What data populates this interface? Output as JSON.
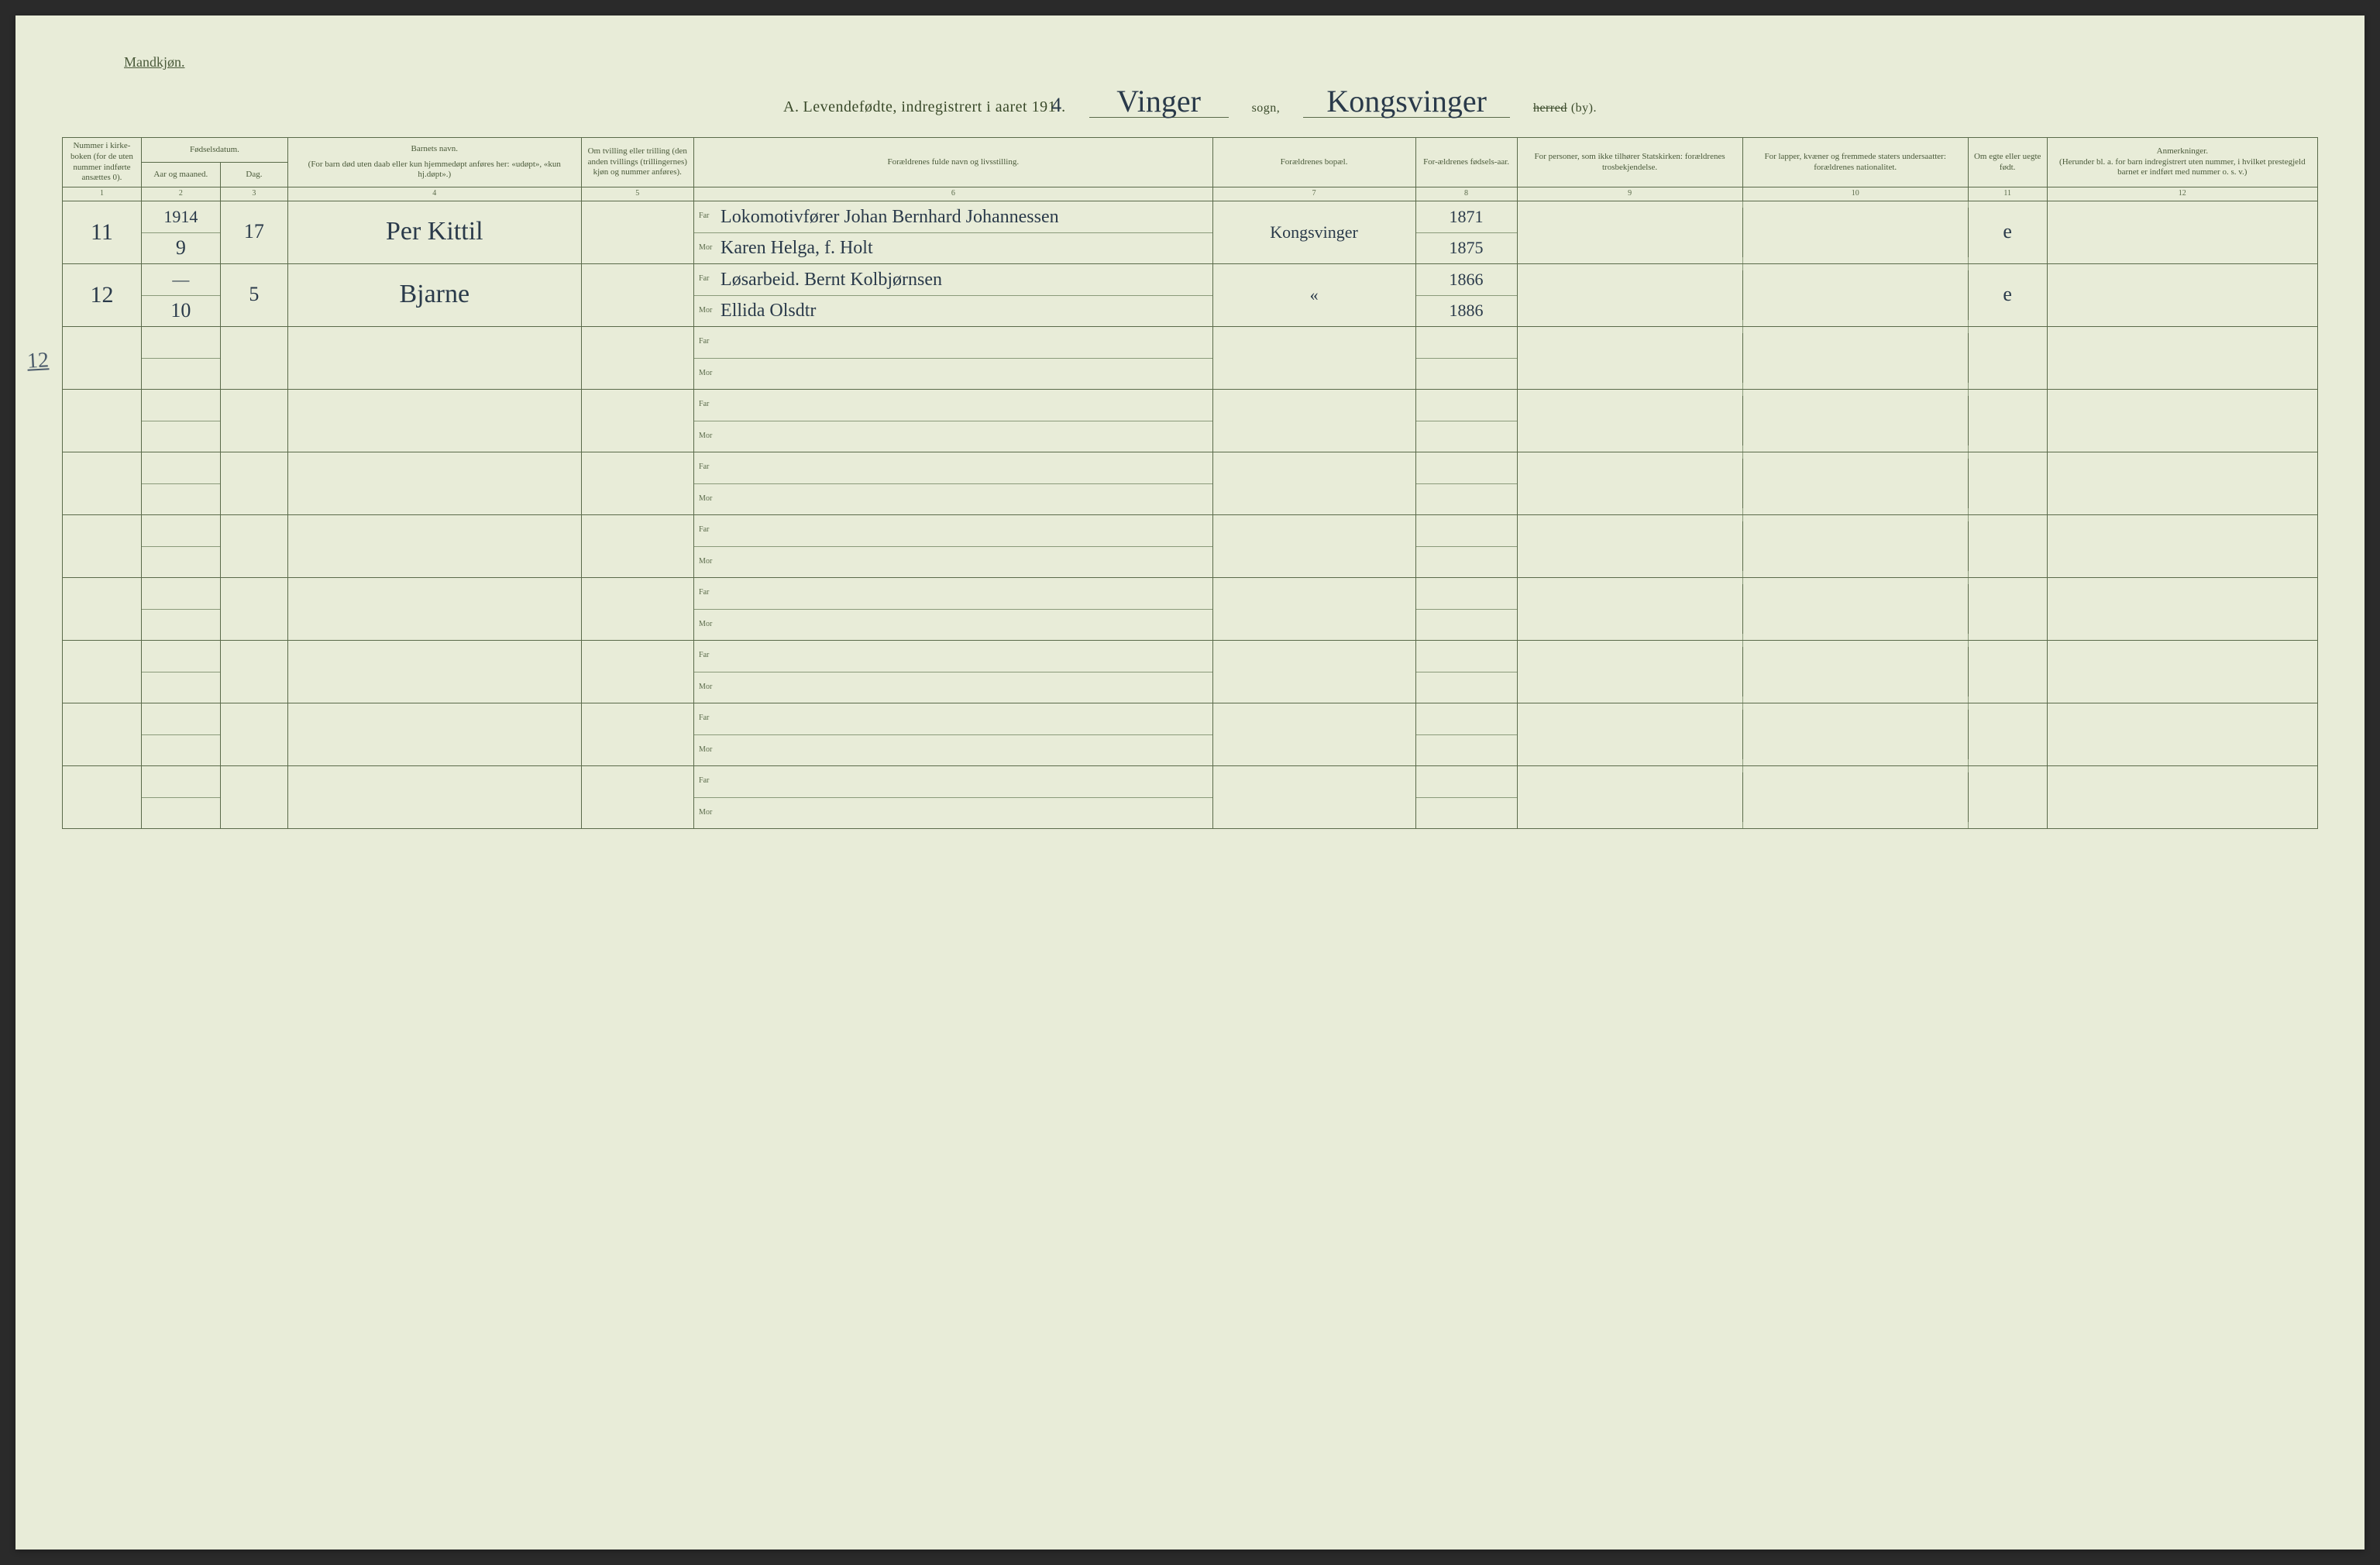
{
  "page": {
    "background_color": "#e8ecd8",
    "border_color": "#5a6a4a",
    "ink_color": "#2a3a4a",
    "print_text_color": "#4a5a3a"
  },
  "header": {
    "gender": "Mandkjøn.",
    "section_letter": "A.",
    "section_title": "Levendefødte, indregistrert i aaret 191",
    "year_suffix_hand": "4",
    "period": ".",
    "sogn_value": "Vinger",
    "sogn_label": "sogn,",
    "herred_value": "Kongsvinger",
    "herred_label_struck": "herred",
    "by_label": "(by)."
  },
  "columns": {
    "c1": "Nummer i kirke-boken (for de uten nummer indførte ansættes 0).",
    "c_date_group": "Fødselsdatum.",
    "c2": "Aar og maaned.",
    "c3": "Dag.",
    "c4_title": "Barnets navn.",
    "c4_sub": "(For barn død uten daab eller kun hjemmedøpt anføres her: «udøpt», «kun hj.døpt».)",
    "c5": "Om tvilling eller trilling (den anden tvillings (trillingernes) kjøn og nummer anføres).",
    "c6": "Forældrenes fulde navn og livsstilling.",
    "c7": "Forældrenes bopæl.",
    "c8": "For-ældrenes fødsels-aar.",
    "c9": "For personer, som ikke tilhører Statskirken: forældrenes trosbekjendelse.",
    "c10": "For lapper, kvæner og fremmede staters undersaatter: forældrenes nationalitet.",
    "c11": "Om egte eller uegte født.",
    "c12_title": "Anmerkninger.",
    "c12_sub": "(Herunder bl. a. for barn indregistrert uten nummer, i hvilket prestegjeld barnet er indført med nummer o. s. v.)"
  },
  "colnums": {
    "n1": "1",
    "n2": "2",
    "n3": "3",
    "n4": "4",
    "n5": "5",
    "n6": "6",
    "n7": "7",
    "n8": "8",
    "n9": "9",
    "n10": "10",
    "n11": "11",
    "n12": "12"
  },
  "labels": {
    "far": "Far",
    "mor": "Mor"
  },
  "gutter_tally": "12",
  "rows": [
    {
      "num": "11",
      "year_month_top": "1914",
      "year_month": "9",
      "day": "17",
      "child": "Per Kittil",
      "twin": "",
      "far": "Lokomotivfører Johan Bernhard Johannessen",
      "mor": "Karen Helga, f. Holt",
      "bopel": "Kongsvinger",
      "far_year": "1871",
      "mor_year": "1875",
      "tros": "",
      "nation": "",
      "egte": "e",
      "anm": ""
    },
    {
      "num": "12",
      "year_month_top": "—",
      "year_month": "10",
      "day": "5",
      "child": "Bjarne",
      "twin": "",
      "far": "Løsarbeid. Bernt Kolbjørnsen",
      "mor": "Ellida Olsdtr",
      "bopel": "«",
      "far_year": "1866",
      "mor_year": "1886",
      "tros": "",
      "nation": "",
      "egte": "e",
      "anm": ""
    },
    {
      "far": "",
      "mor": ""
    },
    {
      "far": "",
      "mor": ""
    },
    {
      "far": "",
      "mor": ""
    },
    {
      "far": "",
      "mor": ""
    },
    {
      "far": "",
      "mor": ""
    },
    {
      "far": "",
      "mor": ""
    },
    {
      "far": "",
      "mor": ""
    },
    {
      "far": "",
      "mor": ""
    }
  ]
}
